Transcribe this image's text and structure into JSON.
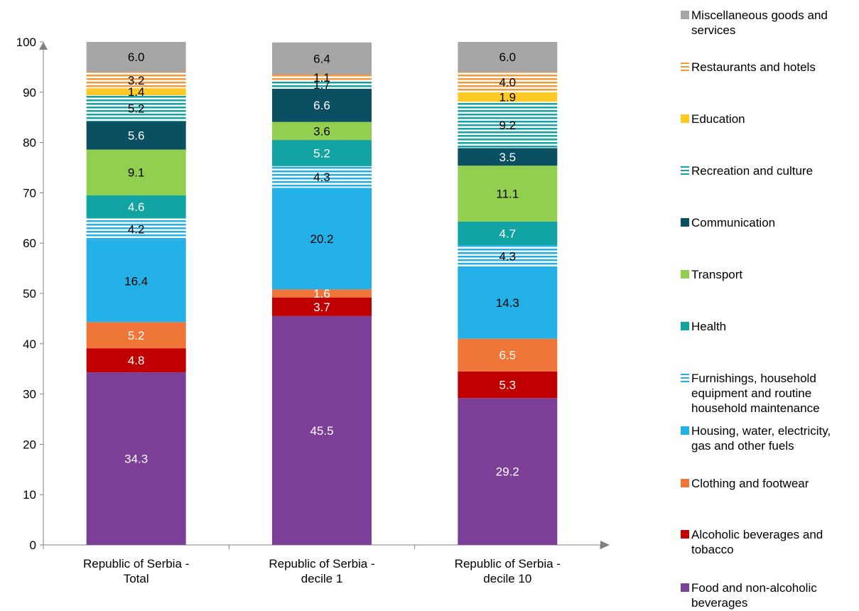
{
  "chart_data": {
    "type": "bar",
    "stacked": true,
    "categories": [
      [
        "Republic of Serbia -",
        "Total"
      ],
      [
        "Republic of Serbia -",
        "decile 1"
      ],
      [
        "Republic of Serbia -",
        "decile 10"
      ]
    ],
    "ylim": [
      0,
      100
    ],
    "yticks": [
      0,
      10,
      20,
      30,
      40,
      50,
      60,
      70,
      80,
      90,
      100
    ],
    "grid": false,
    "legend_position": "right",
    "series": [
      {
        "name": "Food and non-alcoholic beverages",
        "values": [
          34.3,
          45.5,
          29.2
        ],
        "color": "#7B3F98",
        "pattern": "solid",
        "label_color": "#ffffff",
        "legend": [
          "Food and non-alcoholic",
          "beverages"
        ]
      },
      {
        "name": "Alcoholic beverages and tobacco",
        "values": [
          4.8,
          3.7,
          5.3
        ],
        "color": "#C00000",
        "pattern": "solid",
        "label_color": "#ffffff",
        "legend": [
          "Alcoholic beverages and",
          "tobacco"
        ]
      },
      {
        "name": "Clothing and footwear",
        "values": [
          5.2,
          1.6,
          6.5
        ],
        "color": "#F07539",
        "pattern": "solid",
        "label_color": "#ffffff",
        "legend": [
          "Clothing and footwear"
        ]
      },
      {
        "name": "Housing, water, electricity, gas and other fuels",
        "values": [
          16.4,
          20.2,
          14.3
        ],
        "color": "#22B0E6",
        "pattern": "solid",
        "label_color": "#000000",
        "legend": [
          "Housing, water, electricity,",
          "gas and other fuels"
        ]
      },
      {
        "name": "Furnishings, household equipment and routine household maintenance",
        "values": [
          4.2,
          4.3,
          4.3
        ],
        "color": "#22B0E6",
        "pattern": "stripes",
        "label_color": "#000000",
        "legend": [
          "Furnishings, household",
          "equipment and routine",
          "household maintenance"
        ]
      },
      {
        "name": "Health",
        "values": [
          4.6,
          5.2,
          4.7
        ],
        "color": "#12A3A3",
        "pattern": "solid",
        "label_color": "#ffffff",
        "legend": [
          "Health"
        ]
      },
      {
        "name": "Transport",
        "values": [
          9.1,
          3.6,
          11.1
        ],
        "color": "#92CF50",
        "pattern": "solid",
        "label_color": "#000000",
        "legend": [
          "Transport"
        ]
      },
      {
        "name": "Communication",
        "values": [
          5.6,
          6.6,
          3.5
        ],
        "color": "#0B4F62",
        "pattern": "solid",
        "label_color": "#ffffff",
        "legend": [
          "Communication"
        ]
      },
      {
        "name": "Recreation and culture",
        "values": [
          5.2,
          1.7,
          9.2
        ],
        "color": "#12A3A3",
        "pattern": "stripes",
        "label_color": "#000000",
        "legend": [
          "Recreation and culture"
        ]
      },
      {
        "name": "Education",
        "values": [
          1.4,
          0.0,
          1.9
        ],
        "color": "#FFC926",
        "pattern": "solid",
        "label_color": "#000000",
        "legend": [
          "Education"
        ]
      },
      {
        "name": "Restaurants and hotels",
        "values": [
          3.2,
          1.1,
          4.0
        ],
        "color": "#F29A38",
        "pattern": "stripes",
        "label_color": "#000000",
        "legend": [
          "Restaurants and hotels"
        ]
      },
      {
        "name": "Miscellaneous goods and services",
        "values": [
          6.0,
          6.4,
          6.0
        ],
        "color": "#A6A6A6",
        "pattern": "solid",
        "label_color": "#000000",
        "legend": [
          "Miscellaneous goods and",
          "services"
        ]
      }
    ]
  }
}
